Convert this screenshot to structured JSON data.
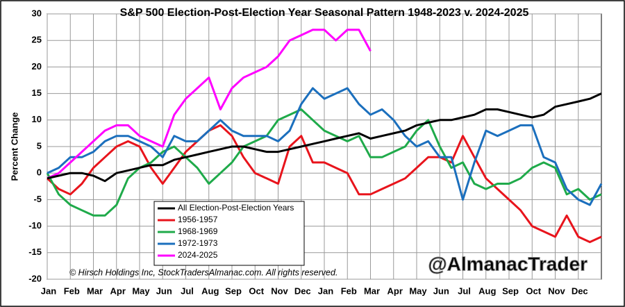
{
  "chart_data": {
    "type": "line",
    "title": "S&P 500 Election-Post-Election Year Seasonal Pattern 1948-2023 v. 2024-2025",
    "y_label": "Percent Change",
    "copyright": "© Hirsch Holdings Inc, StockTradersAlmanac.com. All rights reserved.",
    "watermark": "@AlmanacTrader",
    "categories": [
      "Jan",
      null,
      "Feb",
      null,
      "Mar",
      null,
      "Apr",
      null,
      "May",
      null,
      "Jun",
      null,
      "Jul",
      null,
      "Aug",
      null,
      "Sep",
      null,
      "Oct",
      null,
      "Nov",
      null,
      "Dec",
      null,
      "Jan",
      null,
      "Feb",
      null,
      "Mar",
      null,
      "Apr",
      null,
      "May",
      null,
      "Jun",
      null,
      "Jul",
      null,
      "Aug",
      null,
      "Sep",
      null,
      "Oct",
      null,
      "Nov",
      null,
      "Dec",
      null,
      null
    ],
    "ylim": [
      -20,
      30
    ],
    "yticks": [
      -20,
      -15,
      -10,
      -5,
      0,
      5,
      10,
      15,
      20,
      25,
      30
    ],
    "grid": true,
    "legend": "lower-left",
    "series": [
      {
        "name": "All Election-Post-Election Years",
        "color": "#000000",
        "values": [
          -1,
          -0.5,
          0,
          0,
          -0.5,
          -1.5,
          0,
          0.5,
          1,
          1.5,
          1.5,
          2.5,
          3,
          3.5,
          4,
          4.5,
          5,
          5,
          4.5,
          4,
          4,
          4.5,
          5,
          5.5,
          6,
          6.5,
          7,
          7.5,
          6.5,
          7,
          7.5,
          8,
          9,
          9.5,
          10,
          10,
          10.5,
          11,
          12,
          12,
          11.5,
          11,
          10.5,
          11,
          12.5,
          13,
          13.5,
          14,
          15
        ]
      },
      {
        "name": "1956-1957",
        "color": "#e8141c",
        "values": [
          -1,
          -3,
          -4,
          -2,
          1,
          3,
          5,
          6,
          5,
          1,
          -2,
          1,
          4,
          6,
          8,
          9,
          7,
          3,
          0,
          -1,
          -2,
          5,
          7,
          2,
          2,
          1,
          0,
          -4,
          -4,
          -3,
          -2,
          -1,
          1,
          3,
          3,
          2,
          7,
          3,
          -1,
          -3,
          -5,
          -7,
          -10,
          -11,
          -12,
          -8,
          -12,
          -13,
          -12
        ]
      },
      {
        "name": "1968-1969",
        "color": "#1faa4a",
        "values": [
          0,
          -4,
          -6,
          -7,
          -8,
          -8,
          -6,
          -1,
          1,
          2,
          4,
          5,
          3,
          1,
          -2,
          0,
          2,
          5,
          6,
          7,
          10,
          11,
          12,
          10,
          8,
          7,
          6,
          7,
          3,
          3,
          4,
          5,
          8,
          10,
          5,
          1,
          2,
          -2,
          -3,
          -2,
          -2,
          -1,
          1,
          2,
          1,
          -4,
          -3,
          -5,
          -4
        ]
      },
      {
        "name": "1972-1973",
        "color": "#1b6fbd",
        "values": [
          0,
          1,
          3,
          3,
          4,
          6,
          7,
          7,
          6,
          5,
          3,
          7,
          6,
          6,
          8,
          10,
          8,
          7,
          7,
          7,
          6,
          8,
          13,
          16,
          14,
          15,
          16,
          13,
          11,
          12,
          10,
          7,
          5,
          6,
          3,
          3,
          -5,
          2,
          8,
          7,
          8,
          9,
          9,
          3,
          2,
          -3,
          -5,
          -6,
          -2
        ]
      },
      {
        "name": "2024-2025",
        "color": "#ff00ff",
        "values": [
          -1,
          0,
          2,
          4,
          6,
          8,
          9,
          9,
          7,
          6,
          5,
          11,
          14,
          16,
          18,
          12,
          16,
          18,
          19,
          20,
          22,
          25,
          26,
          27,
          27,
          25,
          27,
          27,
          23,
          null,
          null,
          null,
          null,
          null,
          null,
          null,
          null,
          null,
          null,
          null,
          null,
          null,
          null,
          null,
          null,
          null,
          null,
          null,
          null
        ]
      }
    ]
  }
}
